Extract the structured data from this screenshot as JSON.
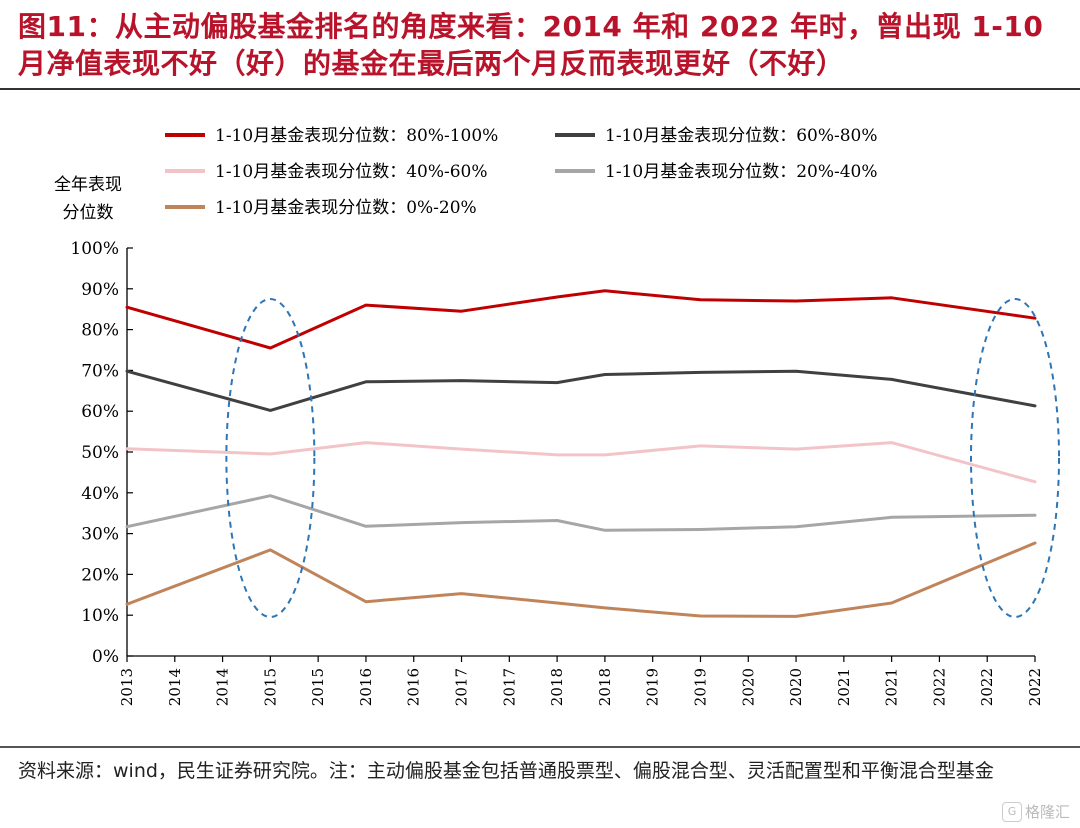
{
  "title": "图11：从主动偏股基金排名的角度来看：2014 年和 2022 年时，曾出现 1-10 月净值表现不好（好）的基金在最后两个月反而表现更好（不好）",
  "footer": "资料来源：wind，民生证券研究院。注：主动偏股基金包括普通股票型、偏股混合型、灵活配置型和平衡混合型基金",
  "watermark": "格隆汇",
  "chart_data": {
    "type": "line",
    "ylabel": "全年表现分位数",
    "ylabel_lines": [
      "全年表现",
      "分位数"
    ],
    "xlabel": "",
    "ylim": [
      0,
      100
    ],
    "yticks": [
      "0%",
      "10%",
      "20%",
      "30%",
      "40%",
      "50%",
      "60%",
      "70%",
      "80%",
      "90%",
      "100%"
    ],
    "x_tick_labels": [
      "2013",
      "2014",
      "2014",
      "2015",
      "2015",
      "2016",
      "2016",
      "2017",
      "2017",
      "2018",
      "2018",
      "2019",
      "2019",
      "2020",
      "2020",
      "2021",
      "2021",
      "2022",
      "2022",
      "2022"
    ],
    "categories": [
      "2013",
      "2014",
      "2015",
      "2016",
      "2017",
      "2018",
      "2019",
      "2020",
      "2021",
      "2022"
    ],
    "legend_position": "top",
    "grid": false,
    "series": [
      {
        "name": "1-10月基金表现分位数：80%-100%",
        "color": "#c00000",
        "values": [
          85.5,
          75.5,
          86.0,
          84.5,
          88.0,
          89.5,
          87.3,
          87.0,
          87.8,
          82.8
        ]
      },
      {
        "name": "1-10月基金表现分位数：60%-80%",
        "color": "#404040",
        "values": [
          69.8,
          60.2,
          67.2,
          67.5,
          67.0,
          69.0,
          69.5,
          69.8,
          67.8,
          61.3
        ]
      },
      {
        "name": "1-10月基金表现分位数：40%-60%",
        "color": "#f2c4c8",
        "values": [
          50.8,
          49.5,
          52.3,
          50.7,
          49.3,
          49.3,
          51.5,
          50.7,
          52.3,
          42.7
        ]
      },
      {
        "name": "1-10月基金表现分位数：20%-40%",
        "color": "#a6a6a6",
        "values": [
          31.7,
          39.3,
          31.8,
          32.7,
          33.2,
          30.8,
          31.0,
          31.7,
          34.0,
          34.5
        ]
      },
      {
        "name": "1-10月基金表现分位数：0%-20%",
        "color": "#c0845a",
        "values": [
          12.7,
          26.0,
          13.3,
          15.3,
          13.0,
          11.8,
          9.8,
          9.7,
          13.0,
          27.7
        ]
      }
    ],
    "highlights": [
      {
        "category": "2014",
        "color": "#2e75b6",
        "style": "dashed-ellipse"
      },
      {
        "category": "2022",
        "color": "#2e75b6",
        "style": "dashed-ellipse"
      }
    ]
  }
}
